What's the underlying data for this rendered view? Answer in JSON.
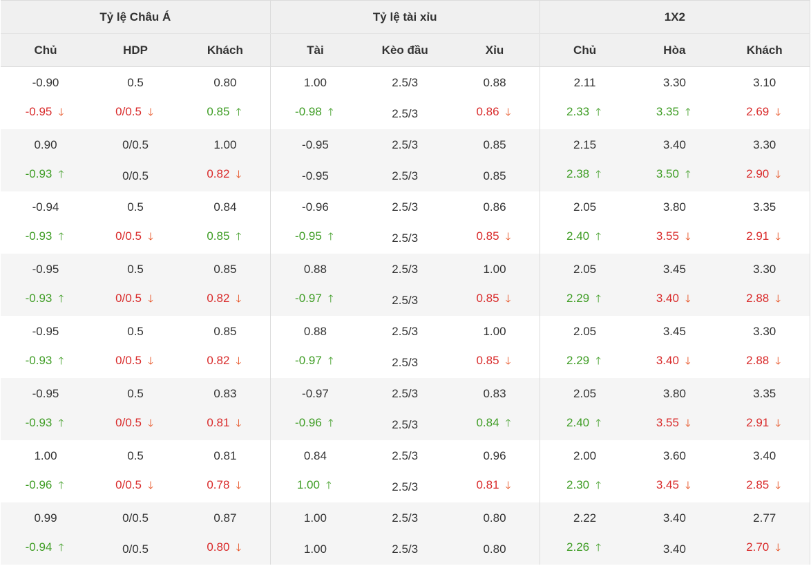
{
  "groups": {
    "asian": "Tỷ lệ Châu Á",
    "overunder": "Tỷ lệ tài xỉu",
    "x12": "1X2"
  },
  "columns": [
    "Chủ",
    "HDP",
    "Khách",
    "Tài",
    "Kèo đầu",
    "Xỉu",
    "Chủ",
    "Hòa",
    "Khách"
  ],
  "colors": {
    "up": "#3f9d25",
    "down": "#d92b2b",
    "row_alt": "#f5f5f5",
    "header_bg": "#f0f0f0"
  },
  "rows": [
    {
      "initial": [
        "-0.90",
        "0.5",
        "0.80",
        "1.00",
        "2.5/3",
        "0.88",
        "2.11",
        "3.30",
        "3.10"
      ],
      "current": [
        {
          "v": "-0.95",
          "d": "down"
        },
        {
          "v": "0/0.5",
          "d": "down"
        },
        {
          "v": "0.85",
          "d": "up"
        },
        {
          "v": "-0.98",
          "d": "up"
        },
        {
          "v": "2.5/3",
          "d": ""
        },
        {
          "v": "0.86",
          "d": "down"
        },
        {
          "v": "2.33",
          "d": "up"
        },
        {
          "v": "3.35",
          "d": "up"
        },
        {
          "v": "2.69",
          "d": "down"
        }
      ]
    },
    {
      "initial": [
        "0.90",
        "0/0.5",
        "1.00",
        "-0.95",
        "2.5/3",
        "0.85",
        "2.15",
        "3.40",
        "3.30"
      ],
      "current": [
        {
          "v": "-0.93",
          "d": "up"
        },
        {
          "v": "0/0.5",
          "d": ""
        },
        {
          "v": "0.82",
          "d": "down"
        },
        {
          "v": "-0.95",
          "d": ""
        },
        {
          "v": "2.5/3",
          "d": ""
        },
        {
          "v": "0.85",
          "d": ""
        },
        {
          "v": "2.38",
          "d": "up"
        },
        {
          "v": "3.50",
          "d": "up"
        },
        {
          "v": "2.90",
          "d": "down"
        }
      ]
    },
    {
      "initial": [
        "-0.94",
        "0.5",
        "0.84",
        "-0.96",
        "2.5/3",
        "0.86",
        "2.05",
        "3.80",
        "3.35"
      ],
      "current": [
        {
          "v": "-0.93",
          "d": "up"
        },
        {
          "v": "0/0.5",
          "d": "down"
        },
        {
          "v": "0.85",
          "d": "up"
        },
        {
          "v": "-0.95",
          "d": "up"
        },
        {
          "v": "2.5/3",
          "d": ""
        },
        {
          "v": "0.85",
          "d": "down"
        },
        {
          "v": "2.40",
          "d": "up"
        },
        {
          "v": "3.55",
          "d": "down"
        },
        {
          "v": "2.91",
          "d": "down"
        }
      ]
    },
    {
      "initial": [
        "-0.95",
        "0.5",
        "0.85",
        "0.88",
        "2.5/3",
        "1.00",
        "2.05",
        "3.45",
        "3.30"
      ],
      "current": [
        {
          "v": "-0.93",
          "d": "up"
        },
        {
          "v": "0/0.5",
          "d": "down"
        },
        {
          "v": "0.82",
          "d": "down"
        },
        {
          "v": "-0.97",
          "d": "up"
        },
        {
          "v": "2.5/3",
          "d": ""
        },
        {
          "v": "0.85",
          "d": "down"
        },
        {
          "v": "2.29",
          "d": "up"
        },
        {
          "v": "3.40",
          "d": "down"
        },
        {
          "v": "2.88",
          "d": "down"
        }
      ]
    },
    {
      "initial": [
        "-0.95",
        "0.5",
        "0.85",
        "0.88",
        "2.5/3",
        "1.00",
        "2.05",
        "3.45",
        "3.30"
      ],
      "current": [
        {
          "v": "-0.93",
          "d": "up"
        },
        {
          "v": "0/0.5",
          "d": "down"
        },
        {
          "v": "0.82",
          "d": "down"
        },
        {
          "v": "-0.97",
          "d": "up"
        },
        {
          "v": "2.5/3",
          "d": ""
        },
        {
          "v": "0.85",
          "d": "down"
        },
        {
          "v": "2.29",
          "d": "up"
        },
        {
          "v": "3.40",
          "d": "down"
        },
        {
          "v": "2.88",
          "d": "down"
        }
      ]
    },
    {
      "initial": [
        "-0.95",
        "0.5",
        "0.83",
        "-0.97",
        "2.5/3",
        "0.83",
        "2.05",
        "3.80",
        "3.35"
      ],
      "current": [
        {
          "v": "-0.93",
          "d": "up"
        },
        {
          "v": "0/0.5",
          "d": "down"
        },
        {
          "v": "0.81",
          "d": "down"
        },
        {
          "v": "-0.96",
          "d": "up"
        },
        {
          "v": "2.5/3",
          "d": ""
        },
        {
          "v": "0.84",
          "d": "up"
        },
        {
          "v": "2.40",
          "d": "up"
        },
        {
          "v": "3.55",
          "d": "down"
        },
        {
          "v": "2.91",
          "d": "down"
        }
      ]
    },
    {
      "initial": [
        "1.00",
        "0.5",
        "0.81",
        "0.84",
        "2.5/3",
        "0.96",
        "2.00",
        "3.60",
        "3.40"
      ],
      "current": [
        {
          "v": "-0.96",
          "d": "up"
        },
        {
          "v": "0/0.5",
          "d": "down"
        },
        {
          "v": "0.78",
          "d": "down"
        },
        {
          "v": "1.00",
          "d": "up"
        },
        {
          "v": "2.5/3",
          "d": ""
        },
        {
          "v": "0.81",
          "d": "down"
        },
        {
          "v": "2.30",
          "d": "up"
        },
        {
          "v": "3.45",
          "d": "down"
        },
        {
          "v": "2.85",
          "d": "down"
        }
      ]
    },
    {
      "initial": [
        "0.99",
        "0/0.5",
        "0.87",
        "1.00",
        "2.5/3",
        "0.80",
        "2.22",
        "3.40",
        "2.77"
      ],
      "current": [
        {
          "v": "-0.94",
          "d": "up"
        },
        {
          "v": "0/0.5",
          "d": ""
        },
        {
          "v": "0.80",
          "d": "down"
        },
        {
          "v": "1.00",
          "d": ""
        },
        {
          "v": "2.5/3",
          "d": ""
        },
        {
          "v": "0.80",
          "d": ""
        },
        {
          "v": "2.26",
          "d": "up"
        },
        {
          "v": "3.40",
          "d": ""
        },
        {
          "v": "2.70",
          "d": "down"
        }
      ]
    }
  ]
}
